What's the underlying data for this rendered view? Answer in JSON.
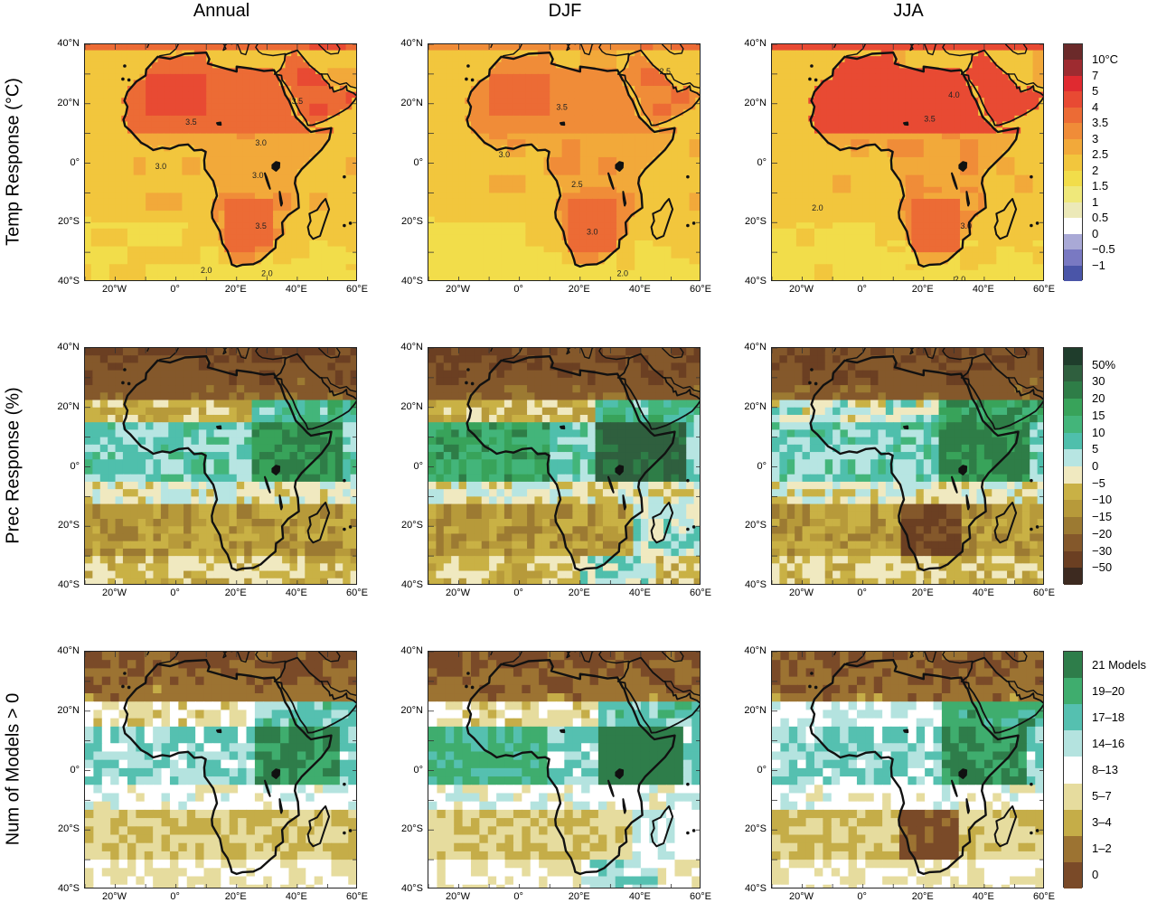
{
  "columns": [
    "Annual",
    "DJF",
    "JJA"
  ],
  "rows": [
    "Temp Response (°C)",
    "Prec Response (%)",
    "Num of Models > 0"
  ],
  "lat_labels": [
    "40°N",
    "20°N",
    "0°",
    "20°S",
    "40°S"
  ],
  "lon_labels": [
    "20°W",
    "0°",
    "20°E",
    "40°E",
    "60°E"
  ],
  "temp_colorbar": {
    "labels": [
      "10°C",
      "7",
      "5",
      "4",
      "3.5",
      "3",
      "2.5",
      "2",
      "1.5",
      "1",
      "0.5",
      "0",
      "−0.5",
      "−1"
    ],
    "colors": [
      "#6b2a2a",
      "#9e2b30",
      "#e02a30",
      "#e84a33",
      "#ec6b35",
      "#f08c38",
      "#f2a93a",
      "#f2c63d",
      "#f2dd4a",
      "#efe87a",
      "#ece9b8",
      "#ffffff",
      "#a9a9d6",
      "#7979c2",
      "#4a55a8"
    ]
  },
  "prec_colorbar": {
    "labels": [
      "50%",
      "30",
      "20",
      "15",
      "10",
      "5",
      "0",
      "−5",
      "−10",
      "−15",
      "−20",
      "−30",
      "−50"
    ],
    "colors": [
      "#1f3d2c",
      "#2f5f3e",
      "#2e7d47",
      "#38a35a",
      "#43b57a",
      "#4fbfac",
      "#b7e5e2",
      "#f0e9c0",
      "#c9b145",
      "#b79a3a",
      "#9c7a32",
      "#84582b",
      "#6b3f22",
      "#3d2a20"
    ]
  },
  "models_colorbar": {
    "labels": [
      "21 Models",
      "19–20",
      "17–18",
      "14–16",
      "8–13",
      "5–7",
      "3–4",
      "1–2",
      "0"
    ],
    "colors": [
      "#2e7d4a",
      "#3fad6e",
      "#55c0b0",
      "#b4e3df",
      "#ffffff",
      "#e6dc9e",
      "#c5ad48",
      "#9c7332",
      "#7a4a28"
    ]
  },
  "contour_labels": {
    "annual": [
      "3.5",
      "3.0",
      "3.0",
      "3.5",
      "3.5",
      "2.0",
      "2.0",
      "3.0"
    ],
    "djf": [
      "3.5",
      "3.0",
      "2.5",
      "3.0",
      "2.0",
      "2.5"
    ],
    "jja": [
      "4.0",
      "3.5",
      "2.0",
      "2.0",
      "3.0"
    ]
  }
}
